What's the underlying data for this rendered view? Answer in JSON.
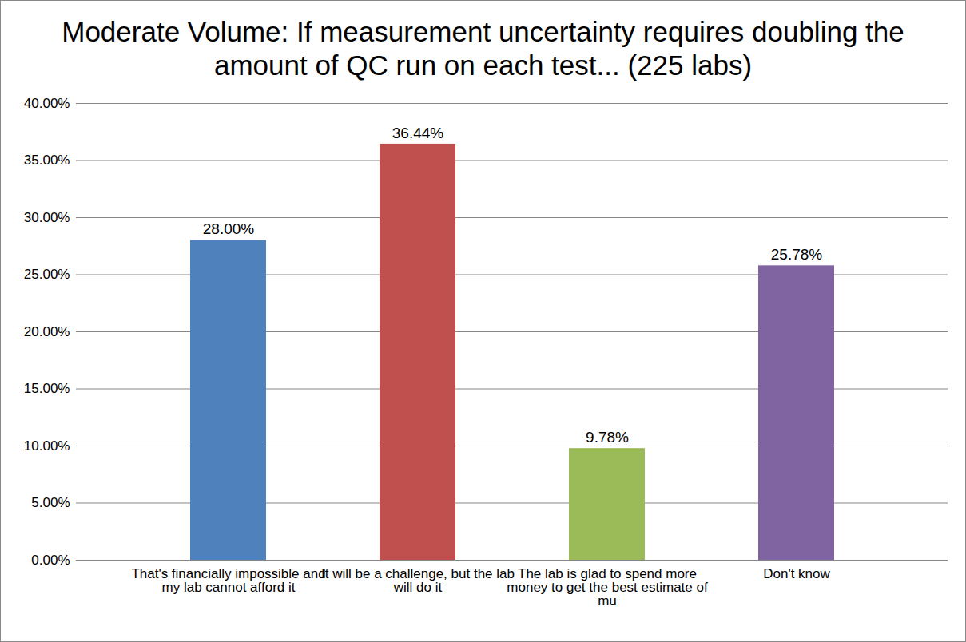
{
  "chart_data": {
    "type": "bar",
    "title": "Moderate Volume: If measurement uncertainty requires doubling the amount of QC run on each test... (225 labs)",
    "categories": [
      "That's financially impossible and my lab cannot afford it",
      "It will be a challenge, but the lab will do it",
      "The lab is glad to spend more money to get the best estimate of mu",
      "Don't know"
    ],
    "values": [
      28.0,
      36.44,
      9.78,
      25.78
    ],
    "value_labels": [
      "28.00%",
      "36.44%",
      "9.78%",
      "25.78%"
    ],
    "colors": [
      "#4F81BD",
      "#C0504D",
      "#9BBB59",
      "#8064A2"
    ],
    "ylim": [
      0,
      40
    ],
    "yticks": [
      {
        "value": 0,
        "label": "0.00%"
      },
      {
        "value": 5,
        "label": "5.00%"
      },
      {
        "value": 10,
        "label": "10.00%"
      },
      {
        "value": 15,
        "label": "15.00%"
      },
      {
        "value": 20,
        "label": "20.00%"
      },
      {
        "value": 25,
        "label": "25.00%"
      },
      {
        "value": 30,
        "label": "30.00%"
      },
      {
        "value": 35,
        "label": "35.00%"
      },
      {
        "value": 40,
        "label": "40.00%"
      }
    ],
    "grid": true,
    "data_labels": true
  }
}
